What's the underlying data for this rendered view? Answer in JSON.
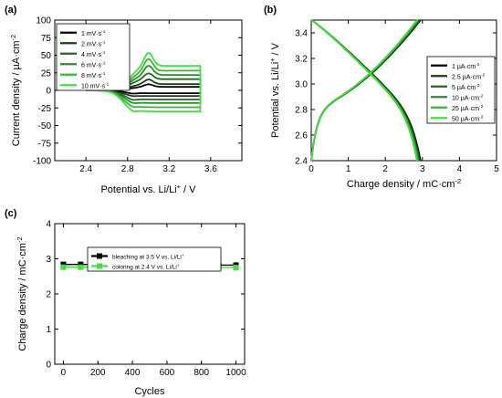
{
  "chart_data": [
    {
      "panel_label": "(a)",
      "type": "line",
      "xlabel": "Potential vs. Li/Li",
      "xlabel_sup": "+",
      "xlabel_tail": " / V",
      "ylabel": "Current density / µA·cm",
      "ylabel_sup": "-2",
      "xlim": [
        2.1,
        3.9
      ],
      "ylim": [
        -100,
        100
      ],
      "xticks": [
        2.4,
        2.8,
        3.2,
        3.6
      ],
      "xtick_labels": [
        "2.4",
        "2.8",
        "3.2",
        "3.6"
      ],
      "yticks": [
        -100,
        -75,
        -50,
        -25,
        0,
        25,
        50,
        75,
        100
      ],
      "ytick_labels": [
        "-100",
        "-75",
        "-50",
        "-25",
        "0",
        "25",
        "50",
        "75",
        "100"
      ],
      "legend_position": "top-left",
      "series": [
        {
          "name": "1 mV·s",
          "name_sup": "-1",
          "color": "#000000",
          "peak": 9,
          "plateau_ox": 5,
          "plateau_red": -4,
          "cathodic_peak": -5
        },
        {
          "name": "2 mV·s",
          "name_sup": "-1",
          "color": "#1a3d1a",
          "peak": 16,
          "plateau_ox": 9,
          "plateau_red": -8,
          "cathodic_peak": -9
        },
        {
          "name": "4 mV·s",
          "name_sup": "-1",
          "color": "#236623",
          "peak": 25,
          "plateau_ox": 16,
          "plateau_red": -13,
          "cathodic_peak": -15
        },
        {
          "name": "6 mV·s",
          "name_sup": "-1",
          "color": "#2a8f2a",
          "peak": 36,
          "plateau_ox": 22,
          "plateau_red": -18,
          "cathodic_peak": -20
        },
        {
          "name": "8 mV·s",
          "name_sup": "-1",
          "color": "#33b833",
          "peak": 46,
          "plateau_ox": 28,
          "plateau_red": -24,
          "cathodic_peak": -26
        },
        {
          "name": "10 mV·s",
          "name_sup": "-1",
          "color": "#40e040",
          "peak": 55,
          "plateau_ox": 35,
          "plateau_red": -30,
          "cathodic_peak": -33
        }
      ]
    },
    {
      "panel_label": "(b)",
      "type": "line",
      "xlabel": "Charge density / mC·cm",
      "xlabel_sup": "-2",
      "ylabel": "Potential vs. Li/Li",
      "ylabel_sup": "+",
      "ylabel_tail": " / V",
      "xlim": [
        0,
        5
      ],
      "ylim": [
        2.4,
        3.5
      ],
      "xticks": [
        0,
        1,
        2,
        3,
        4,
        5
      ],
      "xtick_labels": [
        "0",
        "1",
        "2",
        "3",
        "4",
        "5"
      ],
      "yticks": [
        2.4,
        2.6,
        2.8,
        3.0,
        3.2,
        3.4
      ],
      "ytick_labels": [
        "2.4",
        "2.6",
        "2.8",
        "3.0",
        "3.2",
        "3.4"
      ],
      "legend_position": "center-right",
      "series": [
        {
          "name": "1 µA·cm",
          "name_sup": "-2",
          "color": "#000000",
          "q_max": 2.95
        },
        {
          "name": "2.5 µA·cm",
          "name_sup": "-2",
          "color": "#1a3d1a",
          "q_max": 2.93
        },
        {
          "name": "5 µA·cm",
          "name_sup": "-2",
          "color": "#236623",
          "q_max": 2.91
        },
        {
          "name": "10 µA·cm",
          "name_sup": "-2",
          "color": "#2a8f2a",
          "q_max": 2.89
        },
        {
          "name": "25 µA·cm",
          "name_sup": "-2",
          "color": "#33b833",
          "q_max": 2.87
        },
        {
          "name": "50 µA·cm",
          "name_sup": "-2",
          "color": "#40e040",
          "q_max": 2.85
        }
      ]
    },
    {
      "panel_label": "(c)",
      "type": "line",
      "xlabel": "Cycles",
      "ylabel": "Charge density / mC·cm",
      "ylabel_sup": "-2",
      "xlim": [
        -50,
        1050
      ],
      "ylim": [
        0,
        4
      ],
      "xticks": [
        0,
        200,
        400,
        600,
        800,
        1000
      ],
      "xtick_labels": [
        "0",
        "200",
        "400",
        "600",
        "800",
        "1000"
      ],
      "yticks": [
        0,
        1,
        2,
        3,
        4
      ],
      "ytick_labels": [
        "0",
        "1",
        "2",
        "3",
        "4"
      ],
      "legend_position": "top-center",
      "x": [
        0,
        100,
        200,
        300,
        400,
        500,
        600,
        700,
        800,
        900,
        1000
      ],
      "series": [
        {
          "name": "bleaching at 3.5 V vs. Li/Li",
          "name_sup": "+",
          "color": "#000000",
          "marker": "square",
          "values": [
            2.84,
            2.84,
            2.84,
            2.84,
            2.84,
            2.83,
            2.83,
            2.83,
            2.83,
            2.82,
            2.82
          ]
        },
        {
          "name": "coloring at 2.4 V vs. Li/Li",
          "name_sup": "+",
          "color": "#40e040",
          "marker": "square",
          "values": [
            2.76,
            2.76,
            2.76,
            2.76,
            2.76,
            2.76,
            2.75,
            2.75,
            2.75,
            2.75,
            2.75
          ]
        }
      ]
    }
  ]
}
